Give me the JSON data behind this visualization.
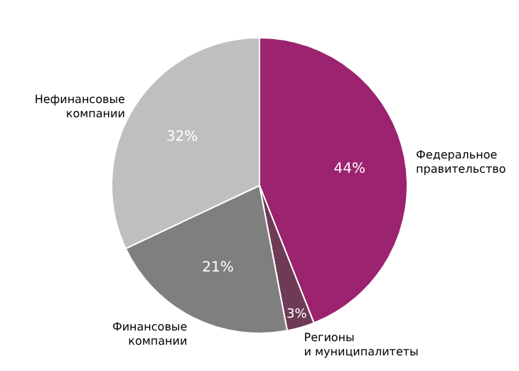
{
  "chart_data": {
    "type": "pie",
    "categories": [
      "Федеральное\nправительство",
      "Регионы\nи муниципалитеты",
      "Финансовые\nкомпании",
      "Нефинансовые\nкомпании"
    ],
    "values": [
      44,
      3,
      21,
      32
    ],
    "value_labels": [
      "44%",
      "3%",
      "21%",
      "32%"
    ],
    "colors": [
      "#9b2370",
      "#6e3a55",
      "#7f7f7f",
      "#bfbfbf"
    ]
  }
}
